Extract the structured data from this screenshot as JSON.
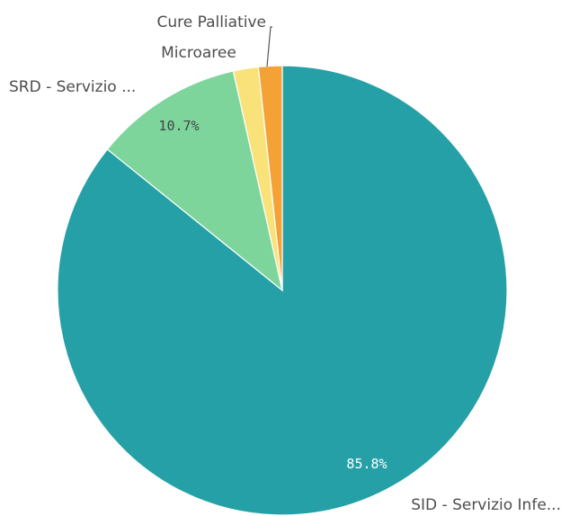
{
  "chart_data": {
    "type": "pie",
    "slices": [
      {
        "label": "SID - Servizio Infe...",
        "value": 85.8,
        "value_label": "85.8%",
        "color": "#26a0a7"
      },
      {
        "label": "SRD - Servizio ...",
        "value": 10.7,
        "value_label": "10.7%",
        "color": "#7dd59c"
      },
      {
        "label": "Microaree",
        "value": 1.8,
        "value_label": "",
        "color": "#fae27a"
      },
      {
        "label": "Cure Palliative",
        "value": 1.7,
        "value_label": "",
        "color": "#f4a236"
      }
    ],
    "start": "12 o'clock",
    "direction": "clockwise",
    "legend": "none"
  }
}
